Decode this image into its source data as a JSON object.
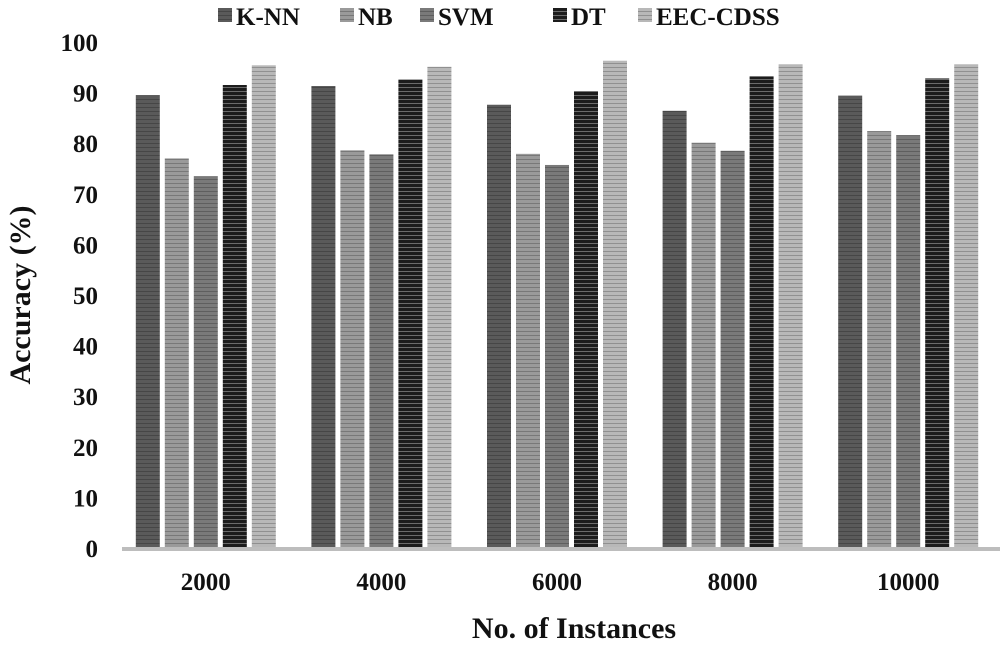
{
  "chart_data": {
    "type": "bar",
    "xlabel": "No. of Instances",
    "ylabel": "Accuracy (%)",
    "categories": [
      "2000",
      "4000",
      "6000",
      "8000",
      "10000"
    ],
    "ylim": [
      0,
      100
    ],
    "yticks": [
      0,
      10,
      20,
      30,
      40,
      50,
      60,
      70,
      80,
      90,
      100
    ],
    "grid": false,
    "legend_position": "top",
    "series": [
      {
        "name": "K-NN",
        "color": "#5a5a5a",
        "values": [
          89.5,
          91.3,
          87.6,
          86.4,
          89.4
        ]
      },
      {
        "name": "NB",
        "color": "#9a9a9a",
        "values": [
          77.0,
          78.6,
          77.9,
          80.1,
          82.4
        ]
      },
      {
        "name": "SVM",
        "color": "#7a7a7a",
        "values": [
          73.5,
          77.8,
          75.7,
          78.5,
          81.6
        ]
      },
      {
        "name": "DT",
        "color": "#1c1c1c",
        "values": [
          91.5,
          92.6,
          90.3,
          93.2,
          92.8
        ]
      },
      {
        "name": "EEC-CDSS",
        "color": "#b8b8b8",
        "values": [
          95.4,
          95.1,
          96.3,
          95.6,
          95.6
        ]
      }
    ]
  }
}
